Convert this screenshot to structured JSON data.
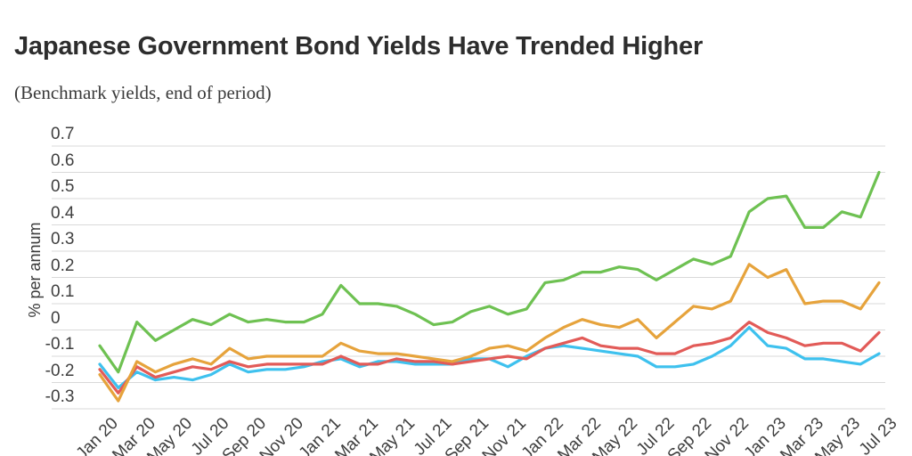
{
  "title": "Japanese Government Bond Yields Have Trended Higher",
  "subtitle": "(Benchmark yields, end of period)",
  "y_axis": {
    "label": "% per annum",
    "ticks": [
      "0.7",
      "0.6",
      "0.5",
      "0.4",
      "0.3",
      "0.2",
      "0.1",
      "0",
      "-0.1",
      "-0.2",
      "-0.3"
    ]
  },
  "x_axis": {
    "ticks": [
      "Jan 20",
      "Mar 20",
      "May 20",
      "Jul 20",
      "Sep 20",
      "Nov 20",
      "Jan 21",
      "Mar 21",
      "May 21",
      "Jul 21",
      "Sep 21",
      "Nov 21",
      "Jan 22",
      "Mar 22",
      "May 22",
      "Jul 22",
      "Sep 22",
      "Nov 22",
      "Jan 23",
      "Mar 23",
      "May 23",
      "Jul 23"
    ]
  },
  "chart_data": {
    "type": "line",
    "title": "Japanese Government Bond Yields Have Trended Higher",
    "subtitle": "(Benchmark yields, end of period)",
    "ylabel": "% per annum",
    "ylim": [
      -0.35,
      0.72
    ],
    "grid": true,
    "legend": "none visible (cropped)",
    "x_tick_step": 2,
    "x": [
      "Jan 20",
      "Feb 20",
      "Mar 20",
      "Apr 20",
      "May 20",
      "Jun 20",
      "Jul 20",
      "Aug 20",
      "Sep 20",
      "Oct 20",
      "Nov 20",
      "Dec 20",
      "Jan 21",
      "Feb 21",
      "Mar 21",
      "Apr 21",
      "May 21",
      "Jun 21",
      "Jul 21",
      "Aug 21",
      "Sep 21",
      "Oct 21",
      "Nov 21",
      "Dec 21",
      "Jan 22",
      "Feb 22",
      "Mar 22",
      "Apr 22",
      "May 22",
      "Jun 22",
      "Jul 22",
      "Aug 22",
      "Sep 22",
      "Oct 22",
      "Nov 22",
      "Dec 22",
      "Jan 23",
      "Feb 23",
      "Mar 23",
      "Apr 23",
      "May 23",
      "Jun 23",
      "Jul 23"
    ],
    "series": [
      {
        "name": "green",
        "color": "#6ec152",
        "values": [
          -0.06,
          -0.16,
          0.03,
          -0.04,
          0.0,
          0.04,
          0.02,
          0.06,
          0.03,
          0.04,
          0.03,
          0.03,
          0.06,
          0.17,
          0.1,
          0.1,
          0.09,
          0.06,
          0.02,
          0.03,
          0.07,
          0.09,
          0.06,
          0.08,
          0.18,
          0.19,
          0.22,
          0.22,
          0.24,
          0.23,
          0.19,
          0.23,
          0.27,
          0.25,
          0.28,
          0.45,
          0.5,
          0.51,
          0.39,
          0.39,
          0.45,
          0.43,
          0.6
        ]
      },
      {
        "name": "orange",
        "color": "#e6a33c",
        "values": [
          -0.17,
          -0.27,
          -0.12,
          -0.16,
          -0.13,
          -0.11,
          -0.13,
          -0.07,
          -0.11,
          -0.1,
          -0.1,
          -0.1,
          -0.1,
          -0.05,
          -0.08,
          -0.09,
          -0.09,
          -0.1,
          -0.11,
          -0.12,
          -0.1,
          -0.07,
          -0.06,
          -0.08,
          -0.03,
          0.01,
          0.04,
          0.02,
          0.01,
          0.04,
          -0.03,
          0.03,
          0.09,
          0.08,
          0.11,
          0.25,
          0.2,
          0.23,
          0.1,
          0.11,
          0.11,
          0.08,
          0.18
        ]
      },
      {
        "name": "red",
        "color": "#e25b58",
        "values": [
          -0.15,
          -0.24,
          -0.14,
          -0.18,
          -0.16,
          -0.14,
          -0.15,
          -0.12,
          -0.14,
          -0.13,
          -0.13,
          -0.13,
          -0.13,
          -0.1,
          -0.13,
          -0.13,
          -0.11,
          -0.12,
          -0.12,
          -0.13,
          -0.12,
          -0.11,
          -0.1,
          -0.11,
          -0.07,
          -0.05,
          -0.03,
          -0.06,
          -0.07,
          -0.07,
          -0.09,
          -0.09,
          -0.06,
          -0.05,
          -0.03,
          0.03,
          -0.01,
          -0.03,
          -0.06,
          -0.05,
          -0.05,
          -0.08,
          -0.01
        ]
      },
      {
        "name": "blue",
        "color": "#3ec1ee",
        "values": [
          -0.13,
          -0.22,
          -0.16,
          -0.19,
          -0.18,
          -0.19,
          -0.17,
          -0.13,
          -0.16,
          -0.15,
          -0.15,
          -0.14,
          -0.12,
          -0.11,
          -0.14,
          -0.12,
          -0.12,
          -0.13,
          -0.13,
          -0.13,
          -0.11,
          -0.11,
          -0.14,
          -0.1,
          -0.07,
          -0.06,
          -0.07,
          -0.08,
          -0.09,
          -0.1,
          -0.14,
          -0.14,
          -0.13,
          -0.1,
          -0.06,
          0.01,
          -0.06,
          -0.07,
          -0.11,
          -0.11,
          -0.12,
          -0.13,
          -0.09
        ]
      }
    ],
    "colors": {
      "grid": "#d9d9d9",
      "title_text": "#2d2d2d",
      "tick_text": "#3f3f3f"
    }
  }
}
